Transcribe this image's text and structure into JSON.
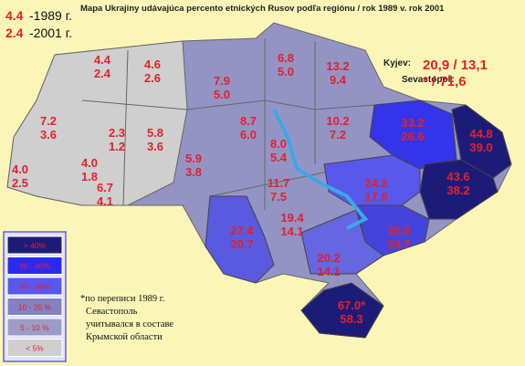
{
  "title": "Mapa Ukrajiny udávajúca percento etnických Rusov podľa regiónu / rok 1989 v. rok 2001",
  "key": [
    {
      "value": "4.4",
      "label": "-1989 г."
    },
    {
      "value": "2.4",
      "label": "-2001 г."
    }
  ],
  "cities": [
    {
      "name": "Kyjev:",
      "values": "20,9 / 13,1"
    },
    {
      "name": "Sevastopoľ:",
      "values": "* / 71,6"
    }
  ],
  "regions": [
    {
      "v1989": "4.4",
      "v2001": "2.4"
    },
    {
      "v1989": "4.6",
      "v2001": "2.6"
    },
    {
      "v1989": "7.9",
      "v2001": "5.0"
    },
    {
      "v1989": "6.8",
      "v2001": "5.0"
    },
    {
      "v1989": "13.2",
      "v2001": "9.4"
    },
    {
      "v1989": "7.2",
      "v2001": "3.6"
    },
    {
      "v1989": "2.3",
      "v2001": "1.2"
    },
    {
      "v1989": "5.8",
      "v2001": "3.6"
    },
    {
      "v1989": "8.7",
      "v2001": "6.0"
    },
    {
      "v1989": "10.2",
      "v2001": "7.2"
    },
    {
      "v1989": "33.2",
      "v2001": "26.6"
    },
    {
      "v1989": "44.8",
      "v2001": "39.0"
    },
    {
      "v1989": "5.9",
      "v2001": "3.8"
    },
    {
      "v1989": "8.0",
      "v2001": "5.4"
    },
    {
      "v1989": "4.0",
      "v2001": "2.5"
    },
    {
      "v1989": "4.0",
      "v2001": "1.8"
    },
    {
      "v1989": "6.7",
      "v2001": "4.1"
    },
    {
      "v1989": "11.7",
      "v2001": "7.5"
    },
    {
      "v1989": "24.2",
      "v2001": "17.6"
    },
    {
      "v1989": "43.6",
      "v2001": "38.2"
    },
    {
      "v1989": "27.4",
      "v2001": "20.7"
    },
    {
      "v1989": "19.4",
      "v2001": "14.1"
    },
    {
      "v1989": "32.8",
      "v2001": "24.7"
    },
    {
      "v1989": "20.2",
      "v2001": "14.1"
    },
    {
      "v1989": "67.0*",
      "v2001": "58.3"
    }
  ],
  "legend": [
    {
      "label": "> 40%",
      "color": "#1c1c78"
    },
    {
      "label": "30 - 40%",
      "color": "#2a2aee"
    },
    {
      "label": "20 - 30%",
      "color": "#5858ec"
    },
    {
      "label": "10 - 20 %",
      "color": "#8282c2"
    },
    {
      "label": "5 - 10 %",
      "color": "#9c9cc8"
    },
    {
      "label": "< 5%",
      "color": "#cfcfcf"
    }
  ],
  "footnote": [
    "*по переписи 1989 г.",
    "Севастополь",
    "учитывался в составе",
    "Крымской области"
  ]
}
